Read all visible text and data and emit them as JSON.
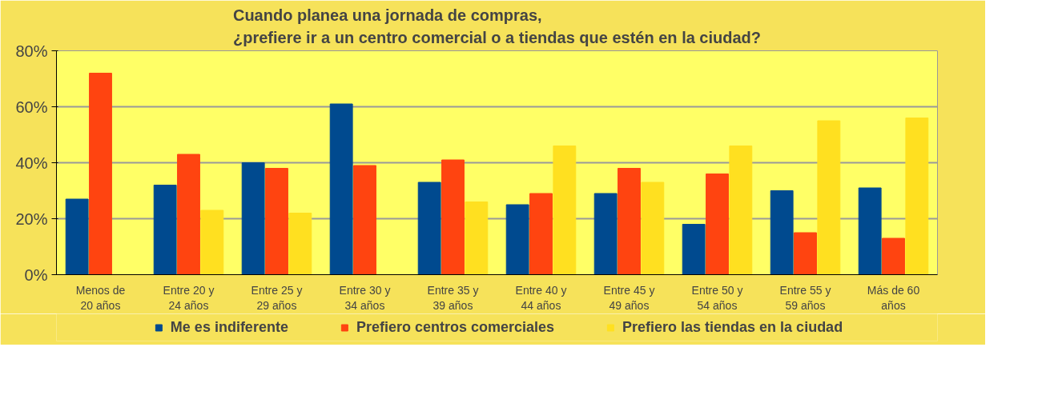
{
  "chart_data": {
    "type": "bar",
    "title": "Cuando planea una jornada de compras,\n¿prefiere ir a un centro comercial o a tiendas que estén en la ciudad?",
    "categories": [
      "Menos de\n20 años",
      "Entre 20 y\n24 años",
      "Entre 25 y\n29 años",
      "Entre 30 y\n34 años",
      "Entre 35 y\n39 años",
      "Entre 40 y\n44 años",
      "Entre 45 y\n49 años",
      "Entre 50 y\n54 años",
      "Entre 55 y\n59 años",
      "Más de 60\naños"
    ],
    "series": [
      {
        "name": "Me es indiferente",
        "color": "#004a8f",
        "values": [
          27,
          32,
          40,
          61,
          33,
          25,
          29,
          18,
          30,
          31
        ]
      },
      {
        "name": "Prefiero centros comerciales",
        "color": "#ff4410",
        "values": [
          72,
          43,
          38,
          39,
          41,
          29,
          38,
          36,
          15,
          13
        ]
      },
      {
        "name": "Prefiero las tiendas en la ciudad",
        "color": "#ffe020",
        "values": [
          null,
          23,
          22,
          null,
          26,
          46,
          33,
          46,
          55,
          56
        ]
      }
    ],
    "ylim": [
      0,
      80
    ],
    "yticks": [
      {
        "value": 0,
        "label": "0%"
      },
      {
        "value": 20,
        "label": "20%"
      },
      {
        "value": 40,
        "label": "40%"
      },
      {
        "value": 60,
        "label": "60%"
      },
      {
        "value": 80,
        "label": "80%"
      }
    ],
    "grid": "y",
    "legend": "bottom"
  }
}
